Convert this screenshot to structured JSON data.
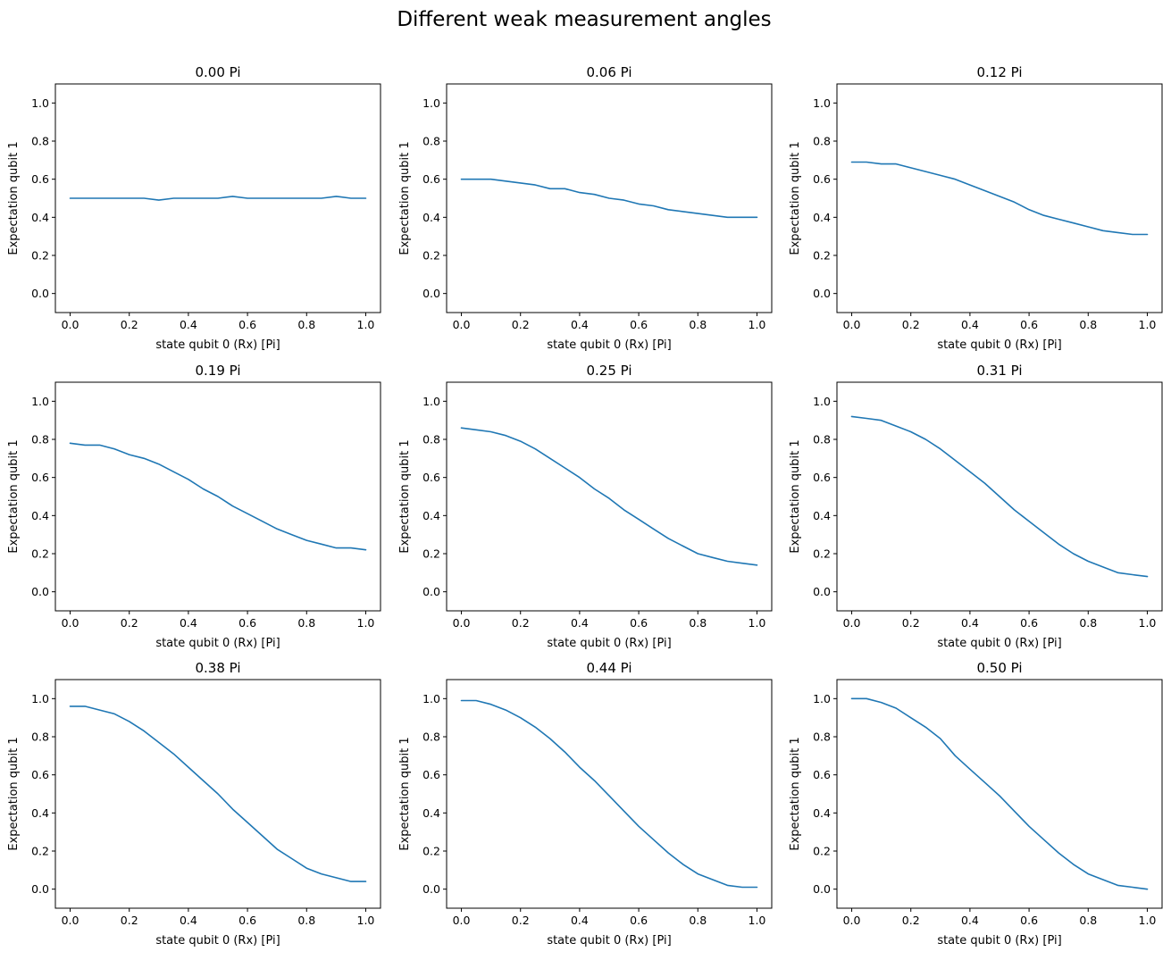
{
  "figure": {
    "title": "Different weak measurement angles"
  },
  "chart_data": [
    {
      "type": "line",
      "title": "0.00 Pi",
      "xlabel": "state qubit 0 (Rx) [Pi]",
      "ylabel": "Expectation qubit 1",
      "xlim": [
        -0.05,
        1.05
      ],
      "ylim": [
        -0.1,
        1.1
      ],
      "xticks": [
        "0.0",
        "0.2",
        "0.4",
        "0.6",
        "0.8",
        "1.0"
      ],
      "yticks": [
        "0.0",
        "0.2",
        "0.4",
        "0.6",
        "0.8",
        "1.0"
      ],
      "grid": false,
      "color": "#1f77b4",
      "x": [
        0.0,
        0.05,
        0.1,
        0.15,
        0.2,
        0.25,
        0.3,
        0.35,
        0.4,
        0.45,
        0.5,
        0.55,
        0.6,
        0.65,
        0.7,
        0.75,
        0.8,
        0.85,
        0.9,
        0.95,
        1.0
      ],
      "y": [
        0.5,
        0.5,
        0.5,
        0.5,
        0.5,
        0.5,
        0.49,
        0.5,
        0.5,
        0.5,
        0.5,
        0.51,
        0.5,
        0.5,
        0.5,
        0.5,
        0.5,
        0.5,
        0.51,
        0.5,
        0.5
      ]
    },
    {
      "type": "line",
      "title": "0.06 Pi",
      "xlabel": "state qubit 0 (Rx) [Pi]",
      "ylabel": "Expectation qubit 1",
      "xlim": [
        -0.05,
        1.05
      ],
      "ylim": [
        -0.1,
        1.1
      ],
      "xticks": [
        "0.0",
        "0.2",
        "0.4",
        "0.6",
        "0.8",
        "1.0"
      ],
      "yticks": [
        "0.0",
        "0.2",
        "0.4",
        "0.6",
        "0.8",
        "1.0"
      ],
      "grid": false,
      "color": "#1f77b4",
      "x": [
        0.0,
        0.05,
        0.1,
        0.15,
        0.2,
        0.25,
        0.3,
        0.35,
        0.4,
        0.45,
        0.5,
        0.55,
        0.6,
        0.65,
        0.7,
        0.75,
        0.8,
        0.85,
        0.9,
        0.95,
        1.0
      ],
      "y": [
        0.6,
        0.6,
        0.6,
        0.59,
        0.58,
        0.57,
        0.55,
        0.55,
        0.53,
        0.52,
        0.5,
        0.49,
        0.47,
        0.46,
        0.44,
        0.43,
        0.42,
        0.41,
        0.4,
        0.4,
        0.4
      ]
    },
    {
      "type": "line",
      "title": "0.12 Pi",
      "xlabel": "state qubit 0 (Rx) [Pi]",
      "ylabel": "Expectation qubit 1",
      "xlim": [
        -0.05,
        1.05
      ],
      "ylim": [
        -0.1,
        1.1
      ],
      "xticks": [
        "0.0",
        "0.2",
        "0.4",
        "0.6",
        "0.8",
        "1.0"
      ],
      "yticks": [
        "0.0",
        "0.2",
        "0.4",
        "0.6",
        "0.8",
        "1.0"
      ],
      "grid": false,
      "color": "#1f77b4",
      "x": [
        0.0,
        0.05,
        0.1,
        0.15,
        0.2,
        0.25,
        0.3,
        0.35,
        0.4,
        0.45,
        0.5,
        0.55,
        0.6,
        0.65,
        0.7,
        0.75,
        0.8,
        0.85,
        0.9,
        0.95,
        1.0
      ],
      "y": [
        0.69,
        0.69,
        0.68,
        0.68,
        0.66,
        0.64,
        0.62,
        0.6,
        0.57,
        0.54,
        0.51,
        0.48,
        0.44,
        0.41,
        0.39,
        0.37,
        0.35,
        0.33,
        0.32,
        0.31,
        0.31
      ]
    },
    {
      "type": "line",
      "title": "0.19 Pi",
      "xlabel": "state qubit 0 (Rx) [Pi]",
      "ylabel": "Expectation qubit 1",
      "xlim": [
        -0.05,
        1.05
      ],
      "ylim": [
        -0.1,
        1.1
      ],
      "xticks": [
        "0.0",
        "0.2",
        "0.4",
        "0.6",
        "0.8",
        "1.0"
      ],
      "yticks": [
        "0.0",
        "0.2",
        "0.4",
        "0.6",
        "0.8",
        "1.0"
      ],
      "grid": false,
      "color": "#1f77b4",
      "x": [
        0.0,
        0.05,
        0.1,
        0.15,
        0.2,
        0.25,
        0.3,
        0.35,
        0.4,
        0.45,
        0.5,
        0.55,
        0.6,
        0.65,
        0.7,
        0.75,
        0.8,
        0.85,
        0.9,
        0.95,
        1.0
      ],
      "y": [
        0.78,
        0.77,
        0.77,
        0.75,
        0.72,
        0.7,
        0.67,
        0.63,
        0.59,
        0.54,
        0.5,
        0.45,
        0.41,
        0.37,
        0.33,
        0.3,
        0.27,
        0.25,
        0.23,
        0.23,
        0.22
      ]
    },
    {
      "type": "line",
      "title": "0.25 Pi",
      "xlabel": "state qubit 0 (Rx) [Pi]",
      "ylabel": "Expectation qubit 1",
      "xlim": [
        -0.05,
        1.05
      ],
      "ylim": [
        -0.1,
        1.1
      ],
      "xticks": [
        "0.0",
        "0.2",
        "0.4",
        "0.6",
        "0.8",
        "1.0"
      ],
      "yticks": [
        "0.0",
        "0.2",
        "0.4",
        "0.6",
        "0.8",
        "1.0"
      ],
      "grid": false,
      "color": "#1f77b4",
      "x": [
        0.0,
        0.05,
        0.1,
        0.15,
        0.2,
        0.25,
        0.3,
        0.35,
        0.4,
        0.45,
        0.5,
        0.55,
        0.6,
        0.65,
        0.7,
        0.75,
        0.8,
        0.85,
        0.9,
        0.95,
        1.0
      ],
      "y": [
        0.86,
        0.85,
        0.84,
        0.82,
        0.79,
        0.75,
        0.7,
        0.65,
        0.6,
        0.54,
        0.49,
        0.43,
        0.38,
        0.33,
        0.28,
        0.24,
        0.2,
        0.18,
        0.16,
        0.15,
        0.14
      ]
    },
    {
      "type": "line",
      "title": "0.31 Pi",
      "xlabel": "state qubit 0 (Rx) [Pi]",
      "ylabel": "Expectation qubit 1",
      "xlim": [
        -0.05,
        1.05
      ],
      "ylim": [
        -0.1,
        1.1
      ],
      "xticks": [
        "0.0",
        "0.2",
        "0.4",
        "0.6",
        "0.8",
        "1.0"
      ],
      "yticks": [
        "0.0",
        "0.2",
        "0.4",
        "0.6",
        "0.8",
        "1.0"
      ],
      "grid": false,
      "color": "#1f77b4",
      "x": [
        0.0,
        0.05,
        0.1,
        0.15,
        0.2,
        0.25,
        0.3,
        0.35,
        0.4,
        0.45,
        0.5,
        0.55,
        0.6,
        0.65,
        0.7,
        0.75,
        0.8,
        0.85,
        0.9,
        0.95,
        1.0
      ],
      "y": [
        0.92,
        0.91,
        0.9,
        0.87,
        0.84,
        0.8,
        0.75,
        0.69,
        0.63,
        0.57,
        0.5,
        0.43,
        0.37,
        0.31,
        0.25,
        0.2,
        0.16,
        0.13,
        0.1,
        0.09,
        0.08
      ]
    },
    {
      "type": "line",
      "title": "0.38 Pi",
      "xlabel": "state qubit 0 (Rx) [Pi]",
      "ylabel": "Expectation qubit 1",
      "xlim": [
        -0.05,
        1.05
      ],
      "ylim": [
        -0.1,
        1.1
      ],
      "xticks": [
        "0.0",
        "0.2",
        "0.4",
        "0.6",
        "0.8",
        "1.0"
      ],
      "yticks": [
        "0.0",
        "0.2",
        "0.4",
        "0.6",
        "0.8",
        "1.0"
      ],
      "grid": false,
      "color": "#1f77b4",
      "x": [
        0.0,
        0.05,
        0.1,
        0.15,
        0.2,
        0.25,
        0.3,
        0.35,
        0.4,
        0.45,
        0.5,
        0.55,
        0.6,
        0.65,
        0.7,
        0.75,
        0.8,
        0.85,
        0.9,
        0.95,
        1.0
      ],
      "y": [
        0.96,
        0.96,
        0.94,
        0.92,
        0.88,
        0.83,
        0.77,
        0.71,
        0.64,
        0.57,
        0.5,
        0.42,
        0.35,
        0.28,
        0.21,
        0.16,
        0.11,
        0.08,
        0.06,
        0.04,
        0.04
      ]
    },
    {
      "type": "line",
      "title": "0.44 Pi",
      "xlabel": "state qubit 0 (Rx) [Pi]",
      "ylabel": "Expectation qubit 1",
      "xlim": [
        -0.05,
        1.05
      ],
      "ylim": [
        -0.1,
        1.1
      ],
      "xticks": [
        "0.0",
        "0.2",
        "0.4",
        "0.6",
        "0.8",
        "1.0"
      ],
      "yticks": [
        "0.0",
        "0.2",
        "0.4",
        "0.6",
        "0.8",
        "1.0"
      ],
      "grid": false,
      "color": "#1f77b4",
      "x": [
        0.0,
        0.05,
        0.1,
        0.15,
        0.2,
        0.25,
        0.3,
        0.35,
        0.4,
        0.45,
        0.5,
        0.55,
        0.6,
        0.65,
        0.7,
        0.75,
        0.8,
        0.85,
        0.9,
        0.95,
        1.0
      ],
      "y": [
        0.99,
        0.99,
        0.97,
        0.94,
        0.9,
        0.85,
        0.79,
        0.72,
        0.64,
        0.57,
        0.49,
        0.41,
        0.33,
        0.26,
        0.19,
        0.13,
        0.08,
        0.05,
        0.02,
        0.01,
        0.01
      ]
    },
    {
      "type": "line",
      "title": "0.50 Pi",
      "xlabel": "state qubit 0 (Rx) [Pi]",
      "ylabel": "Expectation qubit 1",
      "xlim": [
        -0.05,
        1.05
      ],
      "ylim": [
        -0.1,
        1.1
      ],
      "xticks": [
        "0.0",
        "0.2",
        "0.4",
        "0.6",
        "0.8",
        "1.0"
      ],
      "yticks": [
        "0.0",
        "0.2",
        "0.4",
        "0.6",
        "0.8",
        "1.0"
      ],
      "grid": false,
      "color": "#1f77b4",
      "x": [
        0.0,
        0.05,
        0.1,
        0.15,
        0.2,
        0.25,
        0.3,
        0.35,
        0.4,
        0.45,
        0.5,
        0.55,
        0.6,
        0.65,
        0.7,
        0.75,
        0.8,
        0.85,
        0.9,
        0.95,
        1.0
      ],
      "y": [
        1.0,
        1.0,
        0.98,
        0.95,
        0.9,
        0.85,
        0.79,
        0.7,
        0.63,
        0.56,
        0.49,
        0.41,
        0.33,
        0.26,
        0.19,
        0.13,
        0.08,
        0.05,
        0.02,
        0.01,
        0.0
      ]
    }
  ]
}
